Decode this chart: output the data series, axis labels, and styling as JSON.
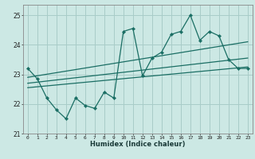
{
  "xlabel": "Humidex (Indice chaleur)",
  "bg_color": "#cce8e4",
  "grid_color": "#a8ccc8",
  "line_color": "#1a6e64",
  "xlim": [
    -0.5,
    23.5
  ],
  "ylim": [
    21.0,
    25.35
  ],
  "yticks": [
    21,
    22,
    23,
    24,
    25
  ],
  "xticks": [
    0,
    1,
    2,
    3,
    4,
    5,
    6,
    7,
    8,
    9,
    10,
    11,
    12,
    13,
    14,
    15,
    16,
    17,
    18,
    19,
    20,
    21,
    22,
    23
  ],
  "data_x": [
    0,
    1,
    2,
    3,
    4,
    5,
    6,
    7,
    8,
    9,
    10,
    11,
    12,
    13,
    14,
    15,
    16,
    17,
    18,
    19,
    20,
    21,
    22,
    23
  ],
  "data_y": [
    23.2,
    22.85,
    22.2,
    21.8,
    21.5,
    22.2,
    21.95,
    21.85,
    22.4,
    22.2,
    24.45,
    24.55,
    22.95,
    23.55,
    23.75,
    24.35,
    24.45,
    25.0,
    24.15,
    24.45,
    24.3,
    23.5,
    23.2,
    23.2
  ],
  "trend1_x": [
    0,
    23
  ],
  "trend1_y": [
    22.9,
    24.1
  ],
  "trend2_x": [
    0,
    23
  ],
  "trend2_y": [
    22.7,
    23.55
  ],
  "trend3_x": [
    0,
    23
  ],
  "trend3_y": [
    22.55,
    23.25
  ]
}
